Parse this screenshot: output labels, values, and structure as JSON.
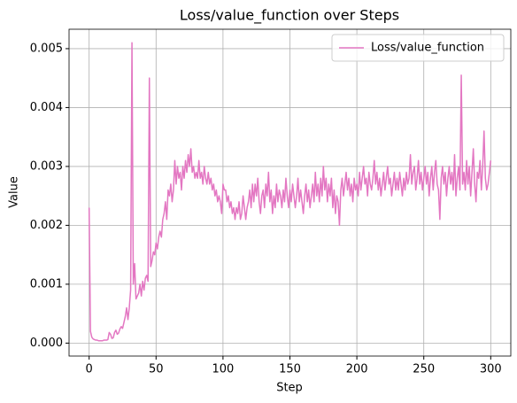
{
  "chart_data": {
    "type": "line",
    "title": "Loss/value_function over Steps",
    "x_label": "Step",
    "y_label": "Value",
    "x": [
      0,
      1,
      2,
      3,
      4,
      5,
      6,
      7,
      8,
      9,
      10,
      11,
      12,
      13,
      14,
      15,
      16,
      17,
      18,
      19,
      20,
      21,
      22,
      23,
      24,
      25,
      26,
      27,
      28,
      29,
      30,
      31,
      32,
      33,
      34,
      35,
      36,
      37,
      38,
      39,
      40,
      41,
      42,
      43,
      44,
      45,
      46,
      47,
      48,
      49,
      50,
      51,
      52,
      53,
      54,
      55,
      56,
      57,
      58,
      59,
      60,
      61,
      62,
      63,
      64,
      65,
      66,
      67,
      68,
      69,
      70,
      71,
      72,
      73,
      74,
      75,
      76,
      77,
      78,
      79,
      80,
      81,
      82,
      83,
      84,
      85,
      86,
      87,
      88,
      89,
      90,
      91,
      92,
      93,
      94,
      95,
      96,
      97,
      98,
      99,
      100,
      101,
      102,
      103,
      104,
      105,
      106,
      107,
      108,
      109,
      110,
      111,
      112,
      113,
      114,
      115,
      116,
      117,
      118,
      119,
      120,
      121,
      122,
      123,
      124,
      125,
      126,
      127,
      128,
      129,
      130,
      131,
      132,
      133,
      134,
      135,
      136,
      137,
      138,
      139,
      140,
      141,
      142,
      143,
      144,
      145,
      146,
      147,
      148,
      149,
      150,
      151,
      152,
      153,
      154,
      155,
      156,
      157,
      158,
      159,
      160,
      161,
      162,
      163,
      164,
      165,
      166,
      167,
      168,
      169,
      170,
      171,
      172,
      173,
      174,
      175,
      176,
      177,
      178,
      179,
      180,
      181,
      182,
      183,
      184,
      185,
      186,
      187,
      188,
      189,
      190,
      191,
      192,
      193,
      194,
      195,
      196,
      197,
      198,
      199,
      200,
      201,
      202,
      203,
      204,
      205,
      206,
      207,
      208,
      209,
      210,
      211,
      212,
      213,
      214,
      215,
      216,
      217,
      218,
      219,
      220,
      221,
      222,
      223,
      224,
      225,
      226,
      227,
      228,
      229,
      230,
      231,
      232,
      233,
      234,
      235,
      236,
      237,
      238,
      239,
      240,
      241,
      242,
      243,
      244,
      245,
      246,
      247,
      248,
      249,
      250,
      251,
      252,
      253,
      254,
      255,
      256,
      257,
      258,
      259,
      260,
      261,
      262,
      263,
      264,
      265,
      266,
      267,
      268,
      269,
      270,
      271,
      272,
      273,
      274,
      275,
      276,
      277,
      278,
      279,
      280,
      281,
      282,
      283,
      284,
      285,
      286,
      287,
      288,
      289,
      290,
      291,
      292,
      293,
      294,
      295,
      296,
      297,
      298,
      299,
      300
    ],
    "series": [
      {
        "name": "Loss/value_function",
        "color": "#e377c2",
        "values": [
          0.0023,
          0.0002,
          0.0001,
          7e-05,
          6e-05,
          5e-05,
          5e-05,
          4e-05,
          4e-05,
          4e-05,
          4e-05,
          5e-05,
          5e-05,
          5e-05,
          6e-05,
          0.00018,
          0.00015,
          8e-05,
          9e-05,
          0.00018,
          0.00022,
          0.00015,
          0.00017,
          0.00024,
          0.00028,
          0.00025,
          0.00035,
          0.00045,
          0.0006,
          0.0004,
          0.0006,
          0.0009,
          0.0051,
          0.001,
          0.00135,
          0.00075,
          0.0008,
          0.00085,
          0.001,
          0.0008,
          0.00105,
          0.0009,
          0.0011,
          0.00115,
          0.00105,
          0.0045,
          0.0013,
          0.0014,
          0.00155,
          0.0015,
          0.0017,
          0.0016,
          0.0018,
          0.0019,
          0.0018,
          0.0021,
          0.0022,
          0.0024,
          0.0021,
          0.0026,
          0.0025,
          0.0027,
          0.0024,
          0.0026,
          0.0031,
          0.0027,
          0.003,
          0.0028,
          0.0029,
          0.0026,
          0.003,
          0.0028,
          0.0031,
          0.0029,
          0.0032,
          0.003,
          0.0033,
          0.0029,
          0.003,
          0.0028,
          0.0029,
          0.0028,
          0.0031,
          0.0028,
          0.0029,
          0.0027,
          0.003,
          0.0028,
          0.0027,
          0.0029,
          0.0027,
          0.0028,
          0.0026,
          0.0027,
          0.0025,
          0.0026,
          0.0024,
          0.0025,
          0.0024,
          0.0022,
          0.0027,
          0.0026,
          0.0026,
          0.0024,
          0.0025,
          0.0023,
          0.0024,
          0.0022,
          0.0023,
          0.0021,
          0.0023,
          0.0022,
          0.0024,
          0.0021,
          0.0022,
          0.0025,
          0.0023,
          0.0021,
          0.0023,
          0.0024,
          0.0026,
          0.0023,
          0.0027,
          0.0024,
          0.0027,
          0.0025,
          0.0028,
          0.0024,
          0.0022,
          0.0025,
          0.0026,
          0.0023,
          0.0027,
          0.0025,
          0.0029,
          0.0024,
          0.0026,
          0.0022,
          0.0025,
          0.0023,
          0.0027,
          0.0024,
          0.0026,
          0.0025,
          0.0023,
          0.0026,
          0.0024,
          0.0028,
          0.0025,
          0.0023,
          0.0026,
          0.0024,
          0.0027,
          0.0025,
          0.0023,
          0.0025,
          0.0028,
          0.0024,
          0.0026,
          0.0024,
          0.0022,
          0.0025,
          0.0027,
          0.0024,
          0.0026,
          0.0023,
          0.0025,
          0.0027,
          0.0024,
          0.0029,
          0.0025,
          0.0027,
          0.0024,
          0.0028,
          0.0025,
          0.003,
          0.0026,
          0.0028,
          0.0024,
          0.0027,
          0.0025,
          0.0028,
          0.0023,
          0.0026,
          0.0022,
          0.0025,
          0.0024,
          0.002,
          0.0026,
          0.0028,
          0.0025,
          0.0027,
          0.0029,
          0.0026,
          0.0028,
          0.0025,
          0.0027,
          0.0024,
          0.0028,
          0.0026,
          0.0027,
          0.0025,
          0.0029,
          0.0026,
          0.0028,
          0.003,
          0.0027,
          0.0028,
          0.0025,
          0.0029,
          0.0027,
          0.0026,
          0.0028,
          0.0031,
          0.0027,
          0.0029,
          0.0026,
          0.0028,
          0.0025,
          0.0027,
          0.0029,
          0.0026,
          0.0028,
          0.003,
          0.0027,
          0.0028,
          0.0025,
          0.0027,
          0.0029,
          0.0026,
          0.0028,
          0.0026,
          0.0029,
          0.0027,
          0.0025,
          0.0028,
          0.0026,
          0.0029,
          0.0027,
          0.0028,
          0.0032,
          0.0027,
          0.0029,
          0.003,
          0.0026,
          0.0028,
          0.0031,
          0.0027,
          0.0029,
          0.0026,
          0.0028,
          0.003,
          0.0027,
          0.0029,
          0.0025,
          0.0028,
          0.003,
          0.0026,
          0.0029,
          0.0031,
          0.0027,
          0.0026,
          0.0021,
          0.0028,
          0.003,
          0.0027,
          0.0029,
          0.0025,
          0.0028,
          0.003,
          0.0027,
          0.0029,
          0.0026,
          0.0032,
          0.0025,
          0.0028,
          0.003,
          0.0026,
          0.00455,
          0.0027,
          0.0029,
          0.0026,
          0.0031,
          0.0027,
          0.003,
          0.0025,
          0.0029,
          0.0033,
          0.0027,
          0.0024,
          0.0029,
          0.0028,
          0.0031,
          0.0026,
          0.003,
          0.0036,
          0.0028,
          0.0026,
          0.0027,
          0.0029,
          0.0031
        ]
      }
    ],
    "xlim": [
      -15,
      315
    ],
    "xticks": [
      0,
      50,
      100,
      150,
      200,
      250,
      300
    ],
    "ylim": [
      -0.00022,
      0.00533
    ],
    "yticks": [
      {
        "value": 0,
        "label": "0.000"
      },
      {
        "value": 0.001,
        "label": "0.001"
      },
      {
        "value": 0.002,
        "label": "0.002"
      },
      {
        "value": 0.003,
        "label": "0.003"
      },
      {
        "value": 0.004,
        "label": "0.004"
      },
      {
        "value": 0.005,
        "label": "0.005"
      }
    ],
    "grid": true,
    "legend": "upper right"
  }
}
